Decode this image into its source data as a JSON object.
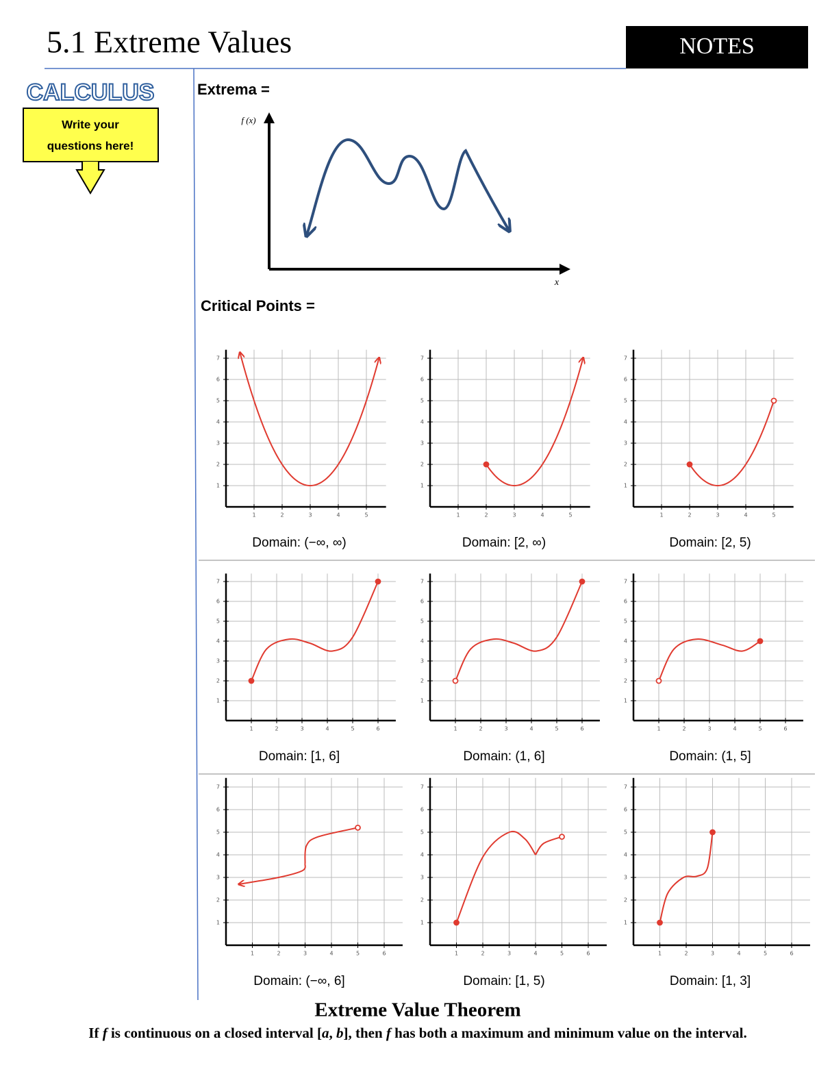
{
  "header": {
    "title": "5.1 Extreme Values",
    "badge": "NOTES"
  },
  "sidebar": {
    "subject": "CALCULUS",
    "prompt_lines": [
      "Write your",
      "questions here!"
    ]
  },
  "extrema": {
    "label": "Extrema =",
    "y_axis_label": "f (x)",
    "x_axis_label": "x"
  },
  "critical_points": {
    "label": "Critical Points ="
  },
  "graphs": [
    {
      "xticks": [
        1,
        2,
        3,
        4,
        5
      ],
      "yticks": [
        1,
        2,
        3,
        4,
        5,
        6,
        7
      ],
      "domain": "Domain: (−∞, ∞)"
    },
    {
      "xticks": [
        1,
        2,
        3,
        4,
        5
      ],
      "yticks": [
        1,
        2,
        3,
        4,
        5,
        6,
        7
      ],
      "domain": "Domain:  [2, ∞)"
    },
    {
      "xticks": [
        1,
        2,
        3,
        4,
        5
      ],
      "yticks": [
        1,
        2,
        3,
        4,
        5,
        6,
        7
      ],
      "domain": "Domain: [2, 5)"
    },
    {
      "xticks": [
        1,
        2,
        3,
        4,
        5,
        6
      ],
      "yticks": [
        1,
        2,
        3,
        4,
        5,
        6,
        7
      ],
      "domain": "Domain: [1, 6]"
    },
    {
      "xticks": [
        1,
        2,
        3,
        4,
        5,
        6
      ],
      "yticks": [
        1,
        2,
        3,
        4,
        5,
        6,
        7
      ],
      "domain": "Domain: (1, 6]"
    },
    {
      "xticks": [
        1,
        2,
        3,
        4,
        5,
        6
      ],
      "yticks": [
        1,
        2,
        3,
        4,
        5,
        6,
        7
      ],
      "domain": "Domain: (1, 5]"
    },
    {
      "xticks": [
        1,
        2,
        3,
        4,
        5,
        6
      ],
      "yticks": [
        1,
        2,
        3,
        4,
        5,
        6,
        7
      ],
      "domain": "Domain: (−∞, 6]"
    },
    {
      "xticks": [
        1,
        2,
        3,
        4,
        5,
        6
      ],
      "yticks": [
        1,
        2,
        3,
        4,
        5,
        6,
        7
      ],
      "domain": "Domain: [1, 5)"
    },
    {
      "xticks": [
        1,
        2,
        3,
        4,
        5,
        6
      ],
      "yticks": [
        1,
        2,
        3,
        4,
        5,
        6,
        7
      ],
      "domain": "Domain: [1, 3]"
    }
  ],
  "theorem": {
    "title": "Extreme Value Theorem",
    "segments": [
      {
        "text": "If ",
        "italic": false
      },
      {
        "text": "f",
        "italic": true
      },
      {
        "text": " is continuous on a closed interval [",
        "italic": false
      },
      {
        "text": "a",
        "italic": true
      },
      {
        "text": ", ",
        "italic": false
      },
      {
        "text": "b",
        "italic": true
      },
      {
        "text": "], then ",
        "italic": false
      },
      {
        "text": "f",
        "italic": true
      },
      {
        "text": " has both a maximum and minimum value on the interval.",
        "italic": false
      }
    ]
  }
}
